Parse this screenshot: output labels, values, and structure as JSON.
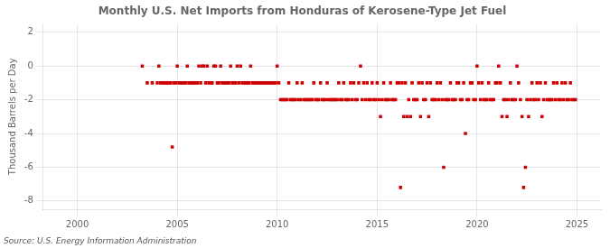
{
  "chart_data": {
    "type": "scatter",
    "title": "Monthly U.S. Net Imports from Honduras of Kerosene-Type Jet Fuel",
    "ylabel": "Thousand Barrels per Day",
    "source": "Source: U.S. Energy Information Administration",
    "color": "#cc0000",
    "marker": "square",
    "grid": true,
    "xlim": [
      1998.3,
      2026.2
    ],
    "xticks": [
      2000,
      2005,
      2010,
      2015,
      2020,
      2025
    ],
    "ylim": [
      -8.5,
      2.5
    ],
    "yticks": [
      2,
      0,
      -2,
      -4,
      -6,
      -8
    ],
    "x": [
      2003.25,
      2003.5,
      2003.75,
      2004.0,
      2004.08,
      2004.17,
      2004.25,
      2004.33,
      2004.42,
      2004.5,
      2004.58,
      2004.67,
      2004.75,
      2004.83,
      2004.92,
      2005.0,
      2005.08,
      2005.17,
      2005.25,
      2005.33,
      2005.42,
      2005.5,
      2005.58,
      2005.67,
      2005.75,
      2005.83,
      2005.92,
      2006.0,
      2006.08,
      2006.17,
      2006.25,
      2006.33,
      2006.42,
      2006.5,
      2006.58,
      2006.67,
      2006.75,
      2006.83,
      2006.92,
      2007.0,
      2007.08,
      2007.17,
      2007.25,
      2007.33,
      2007.42,
      2007.5,
      2007.58,
      2007.67,
      2007.75,
      2007.83,
      2007.92,
      2008.0,
      2008.08,
      2008.17,
      2008.25,
      2008.33,
      2008.42,
      2008.5,
      2008.58,
      2008.67,
      2008.75,
      2008.83,
      2008.92,
      2009.0,
      2009.08,
      2009.17,
      2009.25,
      2009.33,
      2009.42,
      2009.5,
      2009.58,
      2009.67,
      2009.75,
      2009.83,
      2009.92,
      2010.0,
      2010.08,
      2010.17,
      2010.25,
      2010.33,
      2010.42,
      2010.5,
      2010.58,
      2010.67,
      2010.75,
      2010.83,
      2010.92,
      2011.0,
      2011.08,
      2011.17,
      2011.25,
      2011.33,
      2011.42,
      2011.5,
      2011.58,
      2011.67,
      2011.75,
      2011.83,
      2011.92,
      2012.0,
      2012.08,
      2012.17,
      2012.25,
      2012.33,
      2012.42,
      2012.5,
      2012.58,
      2012.67,
      2012.75,
      2012.83,
      2012.92,
      2013.0,
      2013.08,
      2013.17,
      2013.25,
      2013.33,
      2013.42,
      2013.5,
      2013.58,
      2013.67,
      2013.75,
      2013.83,
      2013.92,
      2014.0,
      2014.08,
      2014.17,
      2014.25,
      2014.33,
      2014.42,
      2014.5,
      2014.58,
      2014.67,
      2014.75,
      2014.83,
      2014.92,
      2015.0,
      2015.08,
      2015.17,
      2015.25,
      2015.33,
      2015.42,
      2015.5,
      2015.58,
      2015.67,
      2015.75,
      2015.83,
      2015.92,
      2016.0,
      2016.08,
      2016.17,
      2016.25,
      2016.33,
      2016.42,
      2016.5,
      2016.58,
      2016.67,
      2016.75,
      2016.83,
      2016.92,
      2017.0,
      2017.08,
      2017.17,
      2017.25,
      2017.33,
      2017.42,
      2017.5,
      2017.58,
      2017.67,
      2017.75,
      2017.83,
      2017.92,
      2018.0,
      2018.08,
      2018.17,
      2018.25,
      2018.33,
      2018.42,
      2018.5,
      2018.58,
      2018.67,
      2018.75,
      2018.83,
      2018.92,
      2019.0,
      2019.08,
      2019.17,
      2019.25,
      2019.33,
      2019.42,
      2019.5,
      2019.58,
      2019.67,
      2019.75,
      2019.83,
      2019.92,
      2020.0,
      2020.08,
      2020.17,
      2020.25,
      2020.33,
      2020.42,
      2020.5,
      2020.58,
      2020.67,
      2020.75,
      2020.83,
      2020.92,
      2021.0,
      2021.08,
      2021.17,
      2021.25,
      2021.33,
      2021.42,
      2021.5,
      2021.58,
      2021.67,
      2021.75,
      2021.83,
      2021.92,
      2022.0,
      2022.08,
      2022.17,
      2022.25,
      2022.33,
      2022.42,
      2022.5,
      2022.58,
      2022.67,
      2022.75,
      2022.83,
      2022.92,
      2023.0,
      2023.08,
      2023.17,
      2023.25,
      2023.33,
      2023.42,
      2023.5,
      2023.58,
      2023.67,
      2023.75,
      2023.83,
      2023.92,
      2024.0,
      2024.08,
      2024.17,
      2024.25,
      2024.33,
      2024.42,
      2024.5,
      2024.58,
      2024.67,
      2024.75,
      2024.83,
      2024.92
    ],
    "values": [
      0,
      -1,
      -1,
      -1,
      0,
      -1,
      -1,
      -1,
      -1,
      -1,
      -1,
      -1,
      -4.8,
      -1,
      -1,
      0,
      -1,
      -1,
      -1,
      -1,
      -1,
      0,
      -1,
      -1,
      -1,
      -1,
      -1,
      -1,
      0,
      -1,
      0,
      0,
      -1,
      0,
      -1,
      -1,
      -1,
      0,
      0,
      -1,
      -1,
      0,
      -1,
      -1,
      -1,
      -1,
      -1,
      0,
      -1,
      -1,
      -1,
      0,
      -1,
      0,
      -1,
      -1,
      -1,
      -1,
      -1,
      0,
      -1,
      -1,
      -1,
      -1,
      -1,
      -1,
      -1,
      -1,
      -1,
      -1,
      -1,
      -1,
      -1,
      -1,
      -1,
      0,
      -1,
      -2,
      -2,
      -2,
      -2,
      -2,
      -1,
      -2,
      -2,
      -2,
      -2,
      -1,
      -2,
      -2,
      -1,
      -2,
      -2,
      -2,
      -2,
      -2,
      -2,
      -1,
      -2,
      -2,
      -2,
      -1,
      -2,
      -2,
      -2,
      -1,
      -2,
      -2,
      -2,
      -2,
      -2,
      -2,
      -1,
      -2,
      -2,
      -1,
      -2,
      -2,
      -2,
      -1,
      -2,
      -1,
      -2,
      -2,
      -1,
      0,
      -2,
      -1,
      -2,
      -1,
      -2,
      -2,
      -1,
      -2,
      -2,
      -1,
      -2,
      -3,
      -2,
      -1,
      -2,
      -2,
      -2,
      -1,
      -2,
      -2,
      -2,
      -1,
      -1,
      -7.2,
      -1,
      -3,
      -1,
      -3,
      -2,
      -3,
      -1,
      -2,
      -2,
      -2,
      -1,
      -3,
      -1,
      -2,
      -2,
      -1,
      -3,
      -1,
      -2,
      -2,
      -2,
      -1,
      -2,
      -1,
      -2,
      -6,
      -2,
      -2,
      -2,
      -1,
      -2,
      -2,
      -2,
      -1,
      -1,
      -2,
      -2,
      -1,
      -4,
      -2,
      -2,
      -1,
      -1,
      -2,
      -2,
      0,
      -1,
      -2,
      -1,
      -2,
      -2,
      -2,
      -1,
      -2,
      -2,
      -2,
      -1,
      -1,
      0,
      -1,
      -3,
      -2,
      -2,
      -3,
      -2,
      -1,
      -2,
      -2,
      -2,
      0,
      -1,
      -2,
      -3,
      -7.2,
      -6,
      -2,
      -3,
      -2,
      -1,
      -2,
      -2,
      -1,
      -2,
      -1,
      -3,
      -2,
      -1,
      -2,
      -2,
      -2,
      -2,
      -1,
      -2,
      -1,
      -2,
      -2,
      -1,
      -2,
      -1,
      -2,
      -2,
      -1,
      -2,
      -2,
      -2
    ]
  }
}
